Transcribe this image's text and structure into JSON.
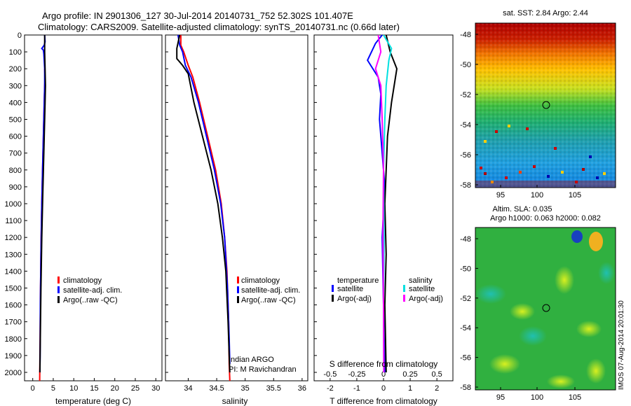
{
  "title": {
    "line1": "Argo profile: IN 2901306_127 30-Jul-2014 20140731_752 52.302S 101.407E",
    "line2": "Climatology: CARS2009. Satellite-adjusted climatology: synTS_20140731.nc (0.66d later)"
  },
  "colors": {
    "climatology": "#ff0000",
    "satellite": "#0000ff",
    "argo": "#000000",
    "sal_satellite": "#00e0e0",
    "sal_argo": "#ff00ff"
  },
  "chart_data": [
    {
      "type": "line",
      "name": "temperature",
      "xlabel": "temperature (deg C)",
      "xlim": [
        -2,
        31.5
      ],
      "ylim": [
        0,
        2050
      ],
      "xticks": [
        "0",
        "5",
        "10",
        "15",
        "20",
        "25",
        "30"
      ],
      "yticks": [
        "0",
        "100",
        "200",
        "300",
        "400",
        "500",
        "600",
        "700",
        "800",
        "900",
        "1000",
        "1100",
        "1200",
        "1300",
        "1400",
        "1500",
        "1600",
        "1700",
        "1800",
        "1900",
        "2000"
      ],
      "legend": [
        "climatology",
        "satellite-adj. clim.",
        "Argo(..raw -QC)"
      ],
      "series": [
        {
          "name": "climatology",
          "color": "#ff0000",
          "x": [
            2.9,
            2.95,
            3.0,
            2.9,
            2.8,
            2.6,
            2.4,
            2.2,
            2.05,
            1.9,
            1.8,
            1.7
          ],
          "y": [
            200,
            230,
            260,
            300,
            400,
            600,
            800,
            1000,
            1200,
            1500,
            1800,
            2050
          ]
        },
        {
          "name": "satellite-adj. clim.",
          "color": "#0000ff",
          "x": [
            2.9,
            3.0,
            2.8,
            2.2,
            2.6,
            2.7,
            2.9,
            2.9,
            2.8,
            2.6,
            2.4,
            2.2,
            2.0,
            1.85,
            1.8,
            1.75
          ],
          "y": [
            0,
            40,
            60,
            80,
            90,
            110,
            200,
            300,
            400,
            600,
            800,
            1000,
            1300,
            1600,
            1900,
            2000
          ]
        },
        {
          "name": "Argo(..raw -QC)",
          "color": "#000000",
          "x": [
            2.9,
            2.9,
            3.0,
            3.1,
            3.0,
            2.8,
            2.6,
            2.4,
            2.2,
            2.0,
            1.85,
            1.75
          ],
          "y": [
            0,
            100,
            200,
            300,
            400,
            600,
            800,
            1000,
            1200,
            1500,
            1800,
            2000
          ]
        }
      ]
    },
    {
      "type": "line",
      "name": "salinity",
      "xlabel": "salinity",
      "xlim": [
        33.6,
        36.1
      ],
      "ylim": [
        0,
        2050
      ],
      "xticks": [
        "34",
        "34.5",
        "35",
        "35.5",
        "36"
      ],
      "legend": [
        "climatology",
        "satellite-adj. clim.",
        "Argo(..raw -QC)"
      ],
      "annotation": [
        "Indian ARGO",
        "PI: M Ravichandran"
      ],
      "series": [
        {
          "name": "climatology",
          "color": "#ff0000",
          "x": [
            33.87,
            33.87,
            33.92,
            34.0,
            34.08,
            34.2,
            34.34,
            34.48,
            34.58,
            34.64,
            34.68,
            34.71,
            34.72,
            34.73
          ],
          "y": [
            0,
            60,
            100,
            180,
            250,
            400,
            600,
            800,
            1000,
            1200,
            1400,
            1700,
            1950,
            2050
          ]
        },
        {
          "name": "satellite-adj. clim.",
          "color": "#0000ff",
          "x": [
            33.82,
            33.85,
            33.9,
            33.95,
            34.05,
            34.18,
            34.32,
            34.46,
            34.57,
            34.64,
            34.69,
            34.72,
            34.73
          ],
          "y": [
            0,
            60,
            100,
            180,
            250,
            400,
            600,
            800,
            1000,
            1200,
            1500,
            1800,
            1950
          ]
        },
        {
          "name": "Argo(..raw -QC)",
          "color": "#000000",
          "x": [
            33.85,
            33.8,
            33.8,
            33.9,
            34.0,
            34.1,
            34.25,
            34.4,
            34.52,
            34.6,
            34.66,
            34.7,
            34.72,
            34.73
          ],
          "y": [
            0,
            80,
            140,
            180,
            230,
            400,
            600,
            800,
            1000,
            1200,
            1400,
            1700,
            1900,
            2000
          ]
        }
      ]
    },
    {
      "type": "line",
      "name": "difference",
      "xlabel": "T difference from climatology",
      "xlabel_top": "S difference from climatology",
      "xlim": [
        -2.6,
        2.6
      ],
      "ylim": [
        0,
        2050
      ],
      "xticks": [
        "-2",
        "-1",
        "0",
        "1",
        "2"
      ],
      "xticks_top": [
        "-0.5",
        "-0.25",
        "0",
        "0.25",
        "0.5"
      ],
      "legend_headers": [
        "temperature",
        "salinity"
      ],
      "legend_temperature": [
        "satellite",
        "Argo(-adj)"
      ],
      "legend_salinity": [
        "satellite",
        "Argo(-adj)"
      ],
      "series": [
        {
          "name": "T satellite",
          "color": "#0000ff",
          "x": [
            -0.05,
            -0.3,
            -0.6,
            -0.2,
            -0.1,
            -0.15,
            -0.05,
            0.05,
            -0.05,
            0.0,
            0.05
          ],
          "y": [
            0,
            50,
            150,
            250,
            350,
            500,
            700,
            900,
            1200,
            1600,
            2000
          ]
        },
        {
          "name": "T Argo(-adj)",
          "color": "#000000",
          "x": [
            0.1,
            0.25,
            0.5,
            0.4,
            0.3,
            0.15,
            0.1,
            0.05,
            0.1,
            0.05,
            0.1
          ],
          "y": [
            0,
            100,
            200,
            300,
            400,
            600,
            800,
            1000,
            1300,
            1600,
            2000
          ]
        },
        {
          "name": "S satellite",
          "color": "#00e0e0",
          "x": [
            0.0,
            0.3,
            0.2,
            0.1,
            0.05,
            0.0,
            0.02,
            0.0,
            0.01
          ],
          "y": [
            0,
            80,
            150,
            300,
            500,
            800,
            1200,
            1600,
            2000
          ]
        },
        {
          "name": "S Argo(-adj)",
          "color": "#ff00ff",
          "x": [
            -0.2,
            -0.1,
            -0.3,
            -0.1,
            -0.05,
            0.0,
            -0.02,
            0.0,
            0.01
          ],
          "y": [
            0,
            100,
            200,
            300,
            500,
            800,
            1200,
            1600,
            2000
          ]
        }
      ]
    },
    {
      "type": "heatmap",
      "name": "sst-map",
      "title": "sat. SST: 2.84  Argo: 2.44",
      "xticks": [
        "95",
        "100",
        "105"
      ],
      "yticks": [
        "-48",
        "-50",
        "-52",
        "-54",
        "-56",
        "-58"
      ]
    },
    {
      "type": "heatmap",
      "name": "sla-map",
      "title": [
        "Altim. SLA: 0.035",
        "Argo h1000: 0.063 h2000: 0.082"
      ],
      "xticks": [
        "95",
        "100",
        "105"
      ],
      "yticks": [
        "-48",
        "-50",
        "-52",
        "-54",
        "-56",
        "-58"
      ],
      "stamp": "IMOS 07-Aug-2014 20:01:30"
    }
  ]
}
